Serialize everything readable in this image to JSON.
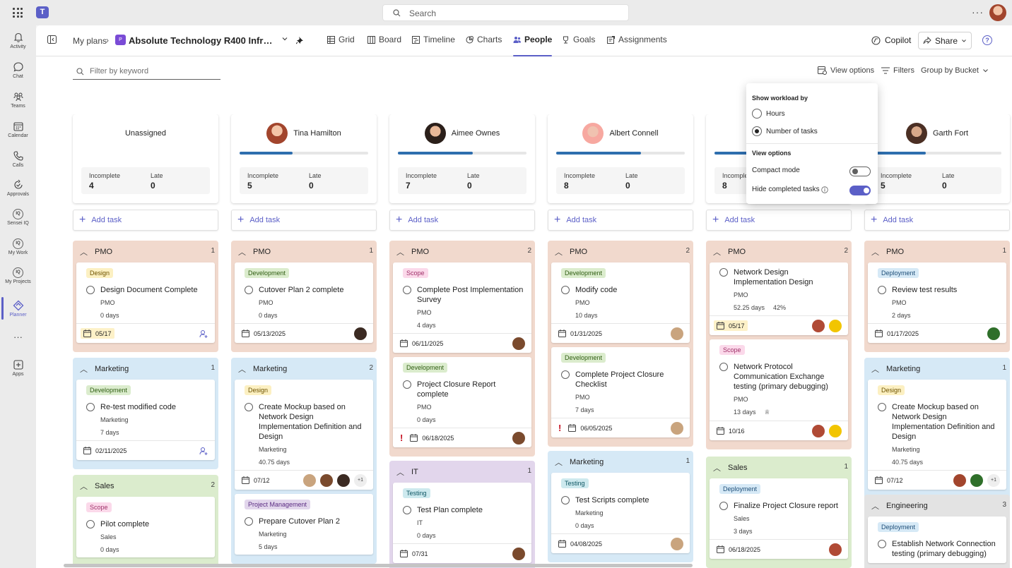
{
  "topbar": {
    "search_placeholder": "Search",
    "more": "···"
  },
  "rail": {
    "items": [
      {
        "label": "Activity",
        "icon": "bell-icon"
      },
      {
        "label": "Chat",
        "icon": "chat-icon"
      },
      {
        "label": "Teams",
        "icon": "teams-icon"
      },
      {
        "label": "Calendar",
        "icon": "calendar-icon"
      },
      {
        "label": "Calls",
        "icon": "phone-icon"
      },
      {
        "label": "Approvals",
        "icon": "approvals-icon"
      },
      {
        "label": "Sensei IQ",
        "icon": "iq-icon"
      },
      {
        "label": "My Work",
        "icon": "iq-icon"
      },
      {
        "label": "My Projects",
        "icon": "iq-icon"
      },
      {
        "label": "Planner",
        "icon": "planner-icon"
      },
      {
        "label": "Apps",
        "icon": "apps-icon"
      }
    ],
    "more": "···"
  },
  "header": {
    "breadcrumb": "My plans",
    "plan_title": "Absolute Technology R400 Infrastructure Upgrade",
    "tabs": [
      "Grid",
      "Board",
      "Timeline",
      "Charts",
      "People",
      "Goals",
      "Assignments"
    ],
    "active_tab": "People",
    "copilot": "Copilot",
    "share": "Share",
    "help": "?"
  },
  "toolbar": {
    "filter_placeholder": "Filter by keyword",
    "view_options": "View options",
    "filters": "Filters",
    "group_by": "Group by Bucket"
  },
  "view_popup": {
    "workload_heading": "Show workload by",
    "hours": "Hours",
    "num_tasks": "Number of tasks",
    "selected": "Number of tasks",
    "view_heading": "View options",
    "compact": "Compact mode",
    "compact_on": false,
    "hide_completed": "Hide completed tasks",
    "hide_completed_on": true
  },
  "labels": {
    "incomplete": "Incomplete",
    "late": "Late",
    "add_task": "Add task"
  },
  "colors": {
    "accent": "#5b5fc7",
    "pmo": "#f1d9cd",
    "marketing": "#d6e9f6",
    "sales": "#dbeccd",
    "it": "#e2d6ec",
    "engineering": "#e3e3e3",
    "progress": "#2e6eae"
  },
  "people": [
    {
      "name": "Unassigned",
      "incomplete": "4",
      "late": "0",
      "progress": null,
      "buckets": [
        {
          "name": "PMO",
          "count": "1",
          "color": "pmo",
          "tasks": [
            {
              "label": "Design",
              "label_color": "yellow",
              "title": "Design Document Complete",
              "bucket": "PMO",
              "days": "0 days",
              "date": "05/17",
              "date_hl": true,
              "assign_icon": true
            }
          ]
        },
        {
          "name": "Marketing",
          "count": "1",
          "color": "marketing",
          "tasks": [
            {
              "label": "Development",
              "label_color": "green",
              "title": "Re-test modified code",
              "bucket": "Marketing",
              "days": "7 days",
              "date": "02/11/2025",
              "assign_icon": true
            }
          ]
        },
        {
          "name": "Sales",
          "count": "2",
          "color": "sales",
          "tasks": [
            {
              "label": "Scope",
              "label_color": "pink",
              "title": "Pilot complete",
              "bucket": "Sales",
              "days": "0 days",
              "date": ""
            }
          ]
        }
      ]
    },
    {
      "name": "Tina Hamilton",
      "incomplete": "5",
      "late": "0",
      "progress": 0.41,
      "buckets": [
        {
          "name": "PMO",
          "count": "1",
          "color": "pmo",
          "tasks": [
            {
              "label": "Development",
              "label_color": "green",
              "title": "Cutover Plan 2 complete",
              "bucket": "PMO",
              "days": "0 days",
              "date": "05/13/2025"
            }
          ]
        },
        {
          "name": "Marketing",
          "count": "2",
          "color": "marketing",
          "tasks": [
            {
              "label": "Design",
              "label_color": "yellow",
              "title": "Create Mockup based on Network Design Implementation Definition and Design",
              "bucket": "Marketing",
              "days": "40.75 days",
              "date": "07/12",
              "avatars": 4,
              "more": "+1"
            },
            {
              "label": "Project Management",
              "label_color": "purple",
              "title": "Prepare Cutover Plan 2",
              "bucket": "Marketing",
              "days": "5 days",
              "date": ""
            }
          ]
        }
      ]
    },
    {
      "name": "Aimee Ownes",
      "incomplete": "7",
      "late": "0",
      "progress": 0.58,
      "buckets": [
        {
          "name": "PMO",
          "count": "2",
          "color": "pmo",
          "tasks": [
            {
              "label": "Scope",
              "label_color": "pink",
              "title": "Complete Post Implementation Survey",
              "bucket": "PMO",
              "days": "4 days",
              "date": "06/11/2025"
            },
            {
              "label": "Development",
              "label_color": "green",
              "title": "Project Closure Report complete",
              "bucket": "PMO",
              "days": "0 days",
              "date": "06/18/2025",
              "urgent": true
            }
          ]
        },
        {
          "name": "IT",
          "count": "1",
          "color": "it",
          "tasks": [
            {
              "label": "Testing",
              "label_color": "teal",
              "title": "Test Plan complete",
              "bucket": "IT",
              "days": "0 days",
              "date": "07/31"
            }
          ]
        }
      ]
    },
    {
      "name": "Albert Connell",
      "incomplete": "8",
      "late": "0",
      "progress": 0.66,
      "buckets": [
        {
          "name": "PMO",
          "count": "2",
          "color": "pmo",
          "tasks": [
            {
              "label": "Development",
              "label_color": "green",
              "title": "Modify code",
              "bucket": "PMO",
              "days": "10 days",
              "date": "01/31/2025"
            },
            {
              "label": "Development",
              "label_color": "green",
              "title": "Complete Project Closure Checklist",
              "bucket": "PMO",
              "days": "7 days",
              "date": "06/05/2025",
              "urgent": true
            }
          ]
        },
        {
          "name": "Marketing",
          "count": "1",
          "color": "marketing",
          "tasks": [
            {
              "label": "Testing",
              "label_color": "teal",
              "title": "Test Scripts complete",
              "bucket": "Marketing",
              "days": "0 days",
              "date": "04/08/2025"
            }
          ]
        }
      ]
    },
    {
      "name": "",
      "incomplete": "8",
      "late": "0",
      "progress": 0.5,
      "buckets": [
        {
          "name": "PMO",
          "count": "2",
          "color": "pmo",
          "tasks": [
            {
              "label": "",
              "title": "Network Design Implementation Design",
              "bucket": "PMO",
              "days": "52.25 days",
              "extra": "42%",
              "date": "05/17",
              "date_hl": true
            },
            {
              "label": "Scope",
              "label_color": "pink",
              "title": "Network Protocol Communication Exchange testing (primary debugging)",
              "bucket": "PMO",
              "days": "13 days",
              "date": "10/16"
            }
          ]
        },
        {
          "name": "Sales",
          "count": "1",
          "color": "sales",
          "tasks": [
            {
              "label": "Deployment",
              "label_color": "blue",
              "title": "Finalize Project Closure report",
              "bucket": "Sales",
              "days": "3 days",
              "date": "06/18/2025"
            }
          ]
        }
      ]
    },
    {
      "name": "Garth Fort",
      "incomplete": "5",
      "late": "0",
      "progress": 0.41,
      "buckets": [
        {
          "name": "PMO",
          "count": "1",
          "color": "pmo",
          "tasks": [
            {
              "label": "Deployment",
              "label_color": "blue",
              "title": "Review test results",
              "bucket": "PMO",
              "days": "2 days",
              "date": "01/17/2025"
            }
          ]
        },
        {
          "name": "Marketing",
          "count": "1",
          "color": "marketing",
          "tasks": [
            {
              "label": "Design",
              "label_color": "yellow",
              "title": "Create Mockup based on Network Design Implementation Definition and Design",
              "bucket": "Marketing",
              "days": "40.75 days",
              "date": "07/12",
              "avatars": 3,
              "more": "+1"
            }
          ]
        },
        {
          "name": "Engineering",
          "count": "3",
          "color": "engineering",
          "tasks": [
            {
              "label": "Deployment",
              "label_color": "blue",
              "title": "Establish Network Connection testing (primary debugging)",
              "bucket": "",
              "days": "",
              "date": ""
            }
          ]
        }
      ]
    }
  ]
}
